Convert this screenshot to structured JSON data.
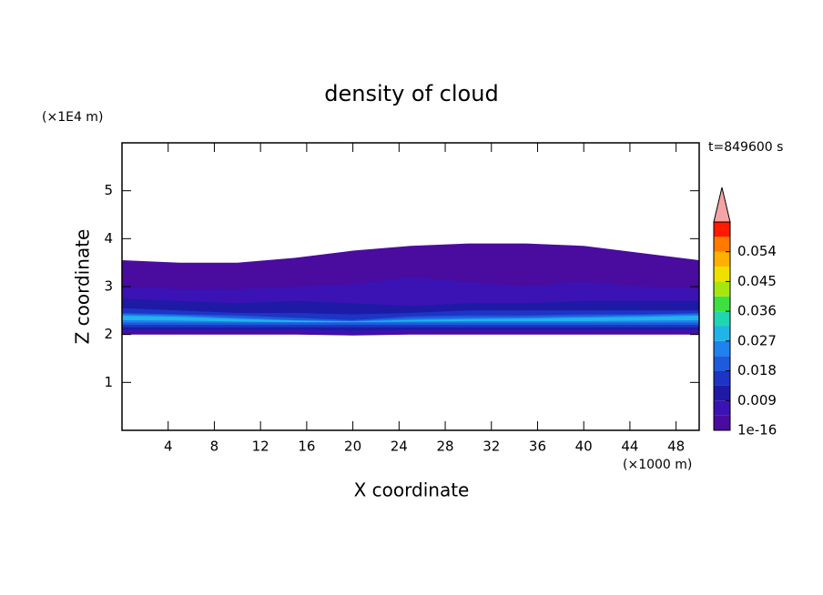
{
  "chart_data": {
    "type": "contour",
    "title": "density of cloud",
    "xlabel": "X coordinate",
    "ylabel": "Z coordinate",
    "xunit": "(×1000 m)",
    "yunit": "(×1E4 m)",
    "time_label": "t=849600 s",
    "xlim": [
      0,
      50
    ],
    "ylim": [
      0,
      6
    ],
    "xticks": [
      4,
      8,
      12,
      16,
      20,
      24,
      28,
      32,
      36,
      40,
      44,
      48
    ],
    "yticks": [
      1,
      2,
      3,
      4,
      5
    ],
    "x": [
      0,
      5,
      10,
      15,
      20,
      25,
      30,
      35,
      40,
      45,
      50
    ],
    "bands": [
      {
        "level": 1e-16,
        "top": [
          3.55,
          3.5,
          3.5,
          3.6,
          3.75,
          3.85,
          3.9,
          3.9,
          3.85,
          3.7,
          3.55
        ],
        "bottom": [
          2.0,
          2.0,
          2.0,
          2.0,
          1.98,
          2.0,
          2.0,
          2.0,
          2.0,
          2.0,
          2.0
        ]
      },
      {
        "level": 0.0045,
        "top": [
          3.0,
          2.95,
          2.95,
          3.0,
          3.05,
          3.2,
          3.1,
          3.0,
          3.1,
          3.0,
          2.95
        ],
        "bottom": [
          2.05,
          2.05,
          2.05,
          2.05,
          2.02,
          2.05,
          2.05,
          2.05,
          2.05,
          2.05,
          2.05
        ]
      },
      {
        "level": 0.009,
        "top": [
          2.75,
          2.7,
          2.65,
          2.7,
          2.65,
          2.6,
          2.65,
          2.65,
          2.7,
          2.7,
          2.7
        ],
        "bottom": [
          2.1,
          2.1,
          2.1,
          2.1,
          2.08,
          2.1,
          2.1,
          2.1,
          2.1,
          2.1,
          2.1
        ]
      },
      {
        "level": 0.0135,
        "top": [
          2.55,
          2.5,
          2.45,
          2.45,
          2.42,
          2.45,
          2.5,
          2.5,
          2.5,
          2.5,
          2.5
        ],
        "bottom": [
          2.15,
          2.15,
          2.15,
          2.15,
          2.15,
          2.15,
          2.15,
          2.15,
          2.15,
          2.15,
          2.15
        ]
      },
      {
        "level": 0.018,
        "top": [
          2.45,
          2.42,
          2.4,
          2.35,
          2.3,
          2.38,
          2.4,
          2.4,
          2.42,
          2.42,
          2.45
        ],
        "bottom": [
          2.2,
          2.2,
          2.2,
          2.2,
          2.2,
          2.2,
          2.2,
          2.2,
          2.2,
          2.2,
          2.2
        ]
      },
      {
        "level": 0.0225,
        "top": [
          2.42,
          2.4,
          2.35,
          2.3,
          2.28,
          2.33,
          2.35,
          2.36,
          2.38,
          2.4,
          2.42
        ],
        "bottom": [
          2.25,
          2.25,
          2.25,
          2.25,
          2.25,
          2.25,
          2.25,
          2.25,
          2.25,
          2.25,
          2.25
        ]
      },
      {
        "level": 0.027,
        "top": [
          2.39,
          2.37,
          2.32,
          2.29,
          2.27,
          2.3,
          2.32,
          2.33,
          2.35,
          2.37,
          2.39
        ],
        "bottom": [
          2.3,
          2.29,
          2.27,
          2.26,
          2.26,
          2.27,
          2.28,
          2.28,
          2.28,
          2.29,
          2.3
        ]
      }
    ],
    "colorbar": {
      "clim": [
        1e-16,
        0.063
      ],
      "ticks": [
        {
          "value": 1e-16,
          "label": "1e-16"
        },
        0.009,
        0.018,
        0.027,
        0.036,
        0.045,
        0.054
      ],
      "colors": [
        "#4a0c9e",
        "#3b12b4",
        "#1e1aa6",
        "#1d34c4",
        "#1e5adc",
        "#1f82ee",
        "#20b4e8",
        "#20d6b0",
        "#3ee040",
        "#a8e610",
        "#f0e000",
        "#ffb000",
        "#ff7a00",
        "#ff1a00"
      ],
      "extend_color": "#f4a4a4"
    }
  }
}
